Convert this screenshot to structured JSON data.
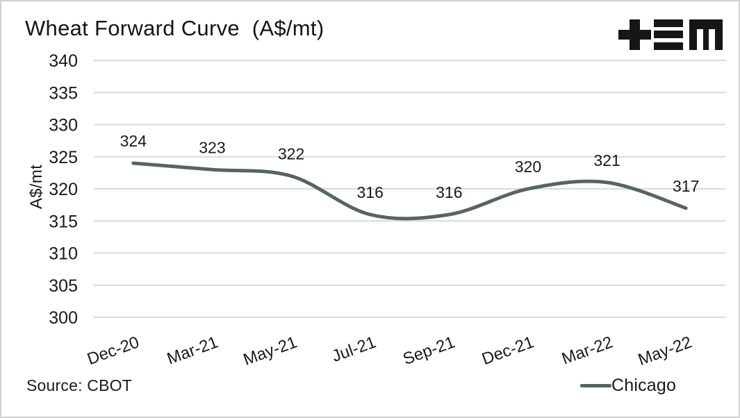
{
  "header": {
    "title": "Wheat Forward Curve  (A$/mt)",
    "logo_icon": "tem-logo",
    "logo_glyphs": "+≡M"
  },
  "chart_data": {
    "type": "line",
    "title": "Wheat Forward Curve  (A$/mt)",
    "categories": [
      "Dec-20",
      "Mar-21",
      "May-21",
      "Jul-21",
      "Sep-21",
      "Dec-21",
      "Mar-22",
      "May-22"
    ],
    "series": [
      {
        "name": "Chicago",
        "values": [
          324,
          323,
          322,
          316,
          316,
          320,
          321,
          317
        ],
        "color": "#566561"
      }
    ],
    "xlabel": "",
    "ylabel": "A$/mt",
    "ylim": [
      300,
      340
    ],
    "ytick_step": 5,
    "ytick_labels": [
      "300",
      "305",
      "310",
      "315",
      "320",
      "325",
      "330",
      "335",
      "340"
    ],
    "grid": true,
    "line_smooth": true,
    "data_labels": true,
    "legend_position": "bottom-right"
  },
  "legend": {
    "items": [
      {
        "label": "Chicago",
        "color": "#566561"
      }
    ]
  },
  "footer": {
    "source": "Source: CBOT"
  },
  "colors": {
    "line": "#566561",
    "grid": "#d9d9d9",
    "text": "#1a1a1a",
    "background": "#ffffff",
    "border": "#cfcfcf"
  }
}
